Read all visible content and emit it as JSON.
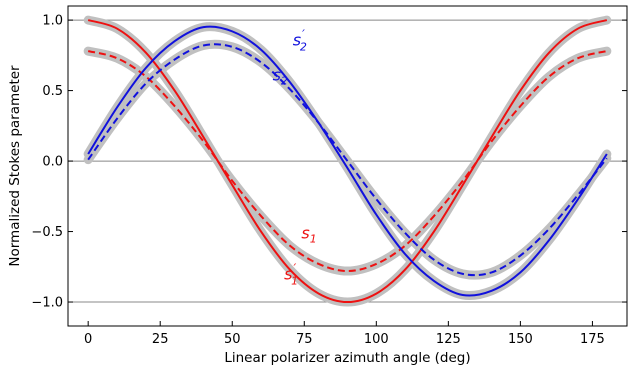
{
  "chart_data": {
    "type": "line",
    "title": "",
    "xlabel": "Linear polarizer azimuth angle (deg)",
    "ylabel": "Normalized Stokes parameter",
    "xlim": [
      -7,
      187
    ],
    "ylim": [
      -1.17,
      1.1
    ],
    "xticks": [
      0,
      25,
      50,
      75,
      100,
      125,
      150,
      175
    ],
    "xtick_labels": [
      "0",
      "25",
      "50",
      "75",
      "100",
      "125",
      "150",
      "175"
    ],
    "yticks": [
      1.0,
      0.5,
      0.0,
      -0.5,
      -1.0
    ],
    "ytick_labels": [
      "1.0",
      "0.5",
      "0.0",
      "−0.5",
      "−1.0"
    ],
    "reference_lines": [
      1.0,
      0.0,
      -1.0
    ],
    "grid": false,
    "legend": "none",
    "x": [
      0,
      10,
      20,
      30,
      40,
      50,
      60,
      70,
      80,
      90,
      100,
      110,
      120,
      130,
      140,
      150,
      160,
      170,
      180
    ],
    "series": [
      {
        "name": "s₁′",
        "label_base": "s",
        "label_sub": "1",
        "label_prime": true,
        "color": "#ee1111",
        "dash": "solid",
        "band_color": "#c0c0c0",
        "values": [
          1.0,
          0.94,
          0.77,
          0.5,
          0.17,
          -0.17,
          -0.5,
          -0.77,
          -0.94,
          -1.0,
          -0.94,
          -0.77,
          -0.5,
          -0.17,
          0.17,
          0.5,
          0.77,
          0.94,
          1.0
        ]
      },
      {
        "name": "s₁",
        "label_base": "s",
        "label_sub": "1",
        "label_prime": false,
        "color": "#ee1111",
        "dash": "dashed",
        "band_color": "#c0c0c0",
        "values": [
          0.78,
          0.73,
          0.6,
          0.39,
          0.14,
          -0.14,
          -0.39,
          -0.6,
          -0.73,
          -0.78,
          -0.73,
          -0.6,
          -0.39,
          -0.14,
          0.14,
          0.39,
          0.6,
          0.73,
          0.78
        ]
      },
      {
        "name": "s₂′",
        "label_base": "s",
        "label_sub": "2",
        "label_prime": true,
        "color": "#1111dd",
        "dash": "solid",
        "band_color": "#c0c0c0",
        "values": [
          0.05,
          0.38,
          0.66,
          0.85,
          0.95,
          0.92,
          0.79,
          0.56,
          0.27,
          -0.05,
          -0.38,
          -0.66,
          -0.85,
          -0.95,
          -0.92,
          -0.79,
          -0.56,
          -0.27,
          0.05
        ]
      },
      {
        "name": "s₂",
        "label_base": "s",
        "label_sub": "2",
        "label_prime": false,
        "color": "#1111dd",
        "dash": "dashed",
        "band_color": "#c0c0c0",
        "values": [
          0.01,
          0.3,
          0.55,
          0.72,
          0.82,
          0.81,
          0.7,
          0.51,
          0.27,
          0.0,
          -0.27,
          -0.51,
          -0.7,
          -0.8,
          -0.79,
          -0.67,
          -0.48,
          -0.24,
          0.02
        ]
      }
    ],
    "annotations": [
      {
        "series": 0,
        "x": 68,
        "y": -0.84,
        "color": "#ee1111"
      },
      {
        "series": 1,
        "x": 74,
        "y": -0.55,
        "color": "#ee1111"
      },
      {
        "series": 2,
        "x": 71,
        "y": 0.82,
        "color": "#1111dd"
      },
      {
        "series": 3,
        "x": 64,
        "y": 0.57,
        "color": "#1111dd"
      }
    ]
  }
}
